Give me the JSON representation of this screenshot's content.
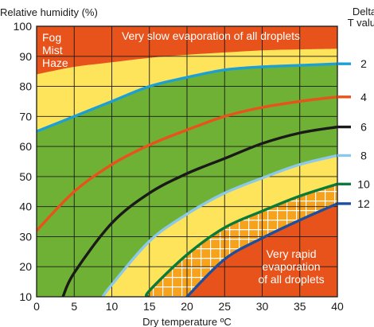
{
  "chart_data": {
    "type": "line",
    "title": "",
    "ylabel": "Relative humidity (%)",
    "xlabel": "Dry temperature ºC",
    "xlim": [
      0,
      40
    ],
    "ylim": [
      10,
      100
    ],
    "x_ticks": [
      "0",
      "5",
      "10",
      "15",
      "20",
      "25",
      "30",
      "35",
      "40"
    ],
    "y_ticks": [
      "10",
      "20",
      "30",
      "40",
      "50",
      "60",
      "70",
      "80",
      "90",
      "100"
    ],
    "grid": true,
    "legend_title": "Delta\nT value",
    "legend_position": "right",
    "x": [
      0,
      5,
      10,
      15,
      20,
      25,
      30,
      35,
      40
    ],
    "series": [
      {
        "name": "2",
        "color": "#1b9fd6",
        "x": [
          0,
          5,
          10,
          15,
          20,
          25,
          30,
          35,
          40
        ],
        "y": [
          65,
          70,
          75,
          80,
          83,
          85.5,
          86.5,
          87,
          87.5
        ]
      },
      {
        "name": "4",
        "color": "#e8531b",
        "x": [
          0,
          5,
          10,
          15,
          20,
          25,
          30,
          35,
          40
        ],
        "y": [
          32,
          45,
          54,
          60.5,
          65.5,
          70,
          73,
          75,
          76.5
        ]
      },
      {
        "name": "6",
        "color": "#1a1a1a",
        "x": [
          3.5,
          5,
          10,
          15,
          20,
          25,
          30,
          35,
          40
        ],
        "y": [
          10,
          18,
          34.5,
          44.5,
          51,
          56,
          61,
          64.5,
          66.5
        ]
      },
      {
        "name": "8",
        "color": "#8cc8ea",
        "x": [
          8.8,
          10,
          15,
          20,
          25,
          30,
          35,
          40
        ],
        "y": [
          10,
          14,
          28.5,
          37.5,
          44.5,
          49.5,
          54,
          57
        ]
      },
      {
        "name": "10",
        "color": "#0a7a3a",
        "x": [
          14.8,
          15,
          20,
          25,
          30,
          35,
          40
        ],
        "y": [
          10,
          12,
          24,
          33,
          38.5,
          43.5,
          47.5
        ]
      },
      {
        "name": "12",
        "color": "#1d4f9e",
        "x": [
          20,
          25,
          30,
          35,
          40
        ],
        "y": [
          10,
          22.5,
          29.5,
          35.5,
          41
        ]
      }
    ],
    "annotations": [
      {
        "text": "Very slow evaporation of all droplets"
      },
      {
        "text": "Fog"
      },
      {
        "text": "Mist"
      },
      {
        "text": "Haze"
      },
      {
        "text": "Very rapid"
      },
      {
        "text": "evaporation"
      },
      {
        "text": "of all droplets"
      }
    ],
    "colors": {
      "orange": "#e8531b",
      "yellow": "#fde45b",
      "green": "#6fb134",
      "grid": "#1a1a1a"
    }
  }
}
